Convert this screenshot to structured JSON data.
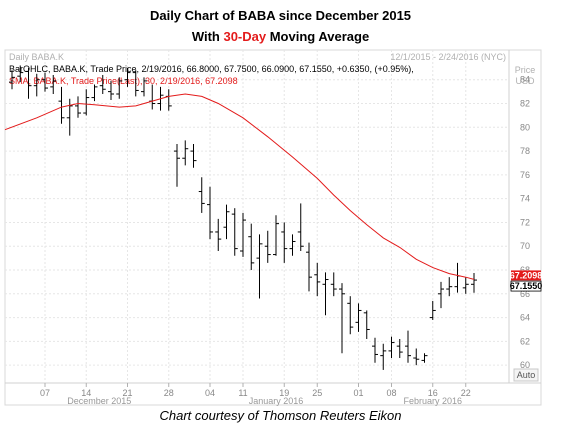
{
  "header": {
    "title_line1": "Daily Chart of BABA since December 2015",
    "title_line2_pre": "With ",
    "title_line2_highlight": "30-Day",
    "title_line2_post": " Moving Average"
  },
  "caption": "Chart courtesy of Thomson Reuters Eikon",
  "chart_data": {
    "type": "line",
    "panel_label": "Daily BABA.K",
    "date_range_label": "12/1/2015 - 2/24/2016 (NYC)",
    "legend": [
      {
        "text": "BarOHLC, BABA.K, Trade Price, 2/19/2016, 66.8000, 67.7500, 66.0900, 67.1550, +0.6350, (+0.95%),",
        "color": "#000000"
      },
      {
        "text": "SMA, BABA.K, Trade Price(Last), 30, 2/19/2016, 67.2098",
        "color": "#e31b1b"
      }
    ],
    "ylabel": "Price",
    "ylabel_unit": "USD",
    "ylim": [
      58.5,
      86.5
    ],
    "yticks": [
      60,
      62,
      64,
      66,
      68,
      70,
      72,
      74,
      76,
      78,
      80,
      82,
      84
    ],
    "y_format": "2 decimals",
    "x_tick_labels": [
      "07",
      "14",
      "21",
      "28",
      "04",
      "11",
      "19",
      "25",
      "01",
      "08",
      "16",
      "22"
    ],
    "month_labels": [
      "December 2015",
      "January 2016",
      "February 2016"
    ],
    "auto_label": "Auto",
    "last_sma_label": "67.2098",
    "last_price_label": "67.1550",
    "series": [
      {
        "name": "BarOHLC",
        "kind": "ohlc",
        "color": "#000000",
        "ohlc": [
          [
            83.8,
            84.8,
            83.2,
            84.2
          ],
          [
            84.3,
            85.2,
            83.8,
            84.6
          ],
          [
            84.7,
            85.0,
            82.4,
            83.5
          ],
          [
            83.5,
            84.5,
            82.6,
            84.0
          ],
          [
            84.0,
            84.6,
            83.0,
            83.3
          ],
          [
            83.4,
            84.4,
            82.8,
            83.9
          ],
          [
            82.2,
            83.4,
            80.3,
            80.8
          ],
          [
            80.8,
            82.4,
            79.3,
            81.8
          ],
          [
            81.8,
            82.6,
            80.8,
            81.2
          ],
          [
            81.2,
            83.2,
            81.0,
            82.5
          ],
          [
            82.5,
            83.6,
            82.2,
            83.4
          ],
          [
            83.5,
            84.4,
            82.8,
            83.2
          ],
          [
            83.0,
            83.9,
            82.3,
            82.8
          ],
          [
            82.8,
            84.2,
            82.4,
            83.9
          ],
          [
            84.0,
            85.0,
            83.4,
            84.6
          ],
          [
            84.6,
            84.8,
            82.6,
            83.1
          ],
          [
            83.0,
            84.2,
            82.6,
            83.9
          ],
          [
            82.2,
            83.6,
            81.5,
            82.0
          ],
          [
            82.0,
            83.4,
            81.4,
            82.7
          ],
          [
            82.6,
            83.2,
            81.4,
            81.8
          ],
          [
            78.0,
            78.6,
            75.0,
            77.4
          ],
          [
            77.4,
            78.9,
            76.8,
            78.2
          ],
          [
            78.0,
            78.6,
            76.6,
            77.2
          ],
          [
            74.6,
            75.8,
            72.8,
            73.6
          ],
          [
            73.5,
            75.0,
            70.6,
            71.2
          ],
          [
            71.2,
            72.3,
            69.6,
            70.6
          ],
          [
            71.6,
            73.5,
            70.6,
            72.9
          ],
          [
            72.7,
            73.2,
            69.2,
            69.8
          ],
          [
            69.6,
            72.8,
            69.1,
            72.2
          ],
          [
            70.8,
            71.9,
            68.0,
            68.6
          ],
          [
            69.0,
            71.0,
            65.6,
            70.2
          ],
          [
            70.0,
            71.3,
            68.6,
            69.3
          ],
          [
            69.3,
            72.6,
            69.2,
            71.9
          ],
          [
            71.2,
            72.0,
            68.6,
            69.8
          ],
          [
            69.8,
            71.0,
            69.2,
            70.4
          ],
          [
            71.2,
            73.6,
            69.6,
            70.0
          ],
          [
            69.5,
            70.3,
            66.2,
            67.4
          ],
          [
            67.6,
            68.6,
            65.8,
            67.0
          ],
          [
            66.8,
            67.8,
            64.2,
            67.2
          ],
          [
            66.8,
            67.8,
            65.8,
            66.4
          ],
          [
            66.4,
            66.9,
            61.0,
            66.0
          ],
          [
            65.2,
            65.8,
            62.6,
            63.2
          ],
          [
            63.6,
            65.2,
            62.8,
            64.6
          ],
          [
            64.4,
            64.6,
            62.2,
            63.0
          ],
          [
            61.6,
            62.3,
            60.2,
            60.9
          ],
          [
            60.8,
            61.8,
            59.6,
            61.2
          ],
          [
            61.2,
            62.4,
            60.6,
            61.9
          ],
          [
            61.6,
            62.2,
            60.6,
            61.1
          ],
          [
            61.6,
            62.9,
            60.2,
            60.8
          ],
          [
            60.6,
            61.4,
            60.0,
            60.5
          ],
          [
            60.4,
            61.0,
            60.2,
            60.8
          ],
          [
            64.0,
            65.4,
            63.8,
            64.6
          ],
          [
            66.0,
            67.0,
            64.8,
            66.4
          ],
          [
            66.4,
            67.4,
            65.8,
            66.6
          ],
          [
            66.6,
            68.6,
            66.1,
            67.5
          ],
          [
            66.5,
            67.4,
            66.0,
            66.8
          ],
          [
            66.8,
            67.75,
            66.09,
            67.155
          ]
        ]
      },
      {
        "name": "SMA",
        "kind": "line",
        "color": "#e31b1b",
        "points": [
          [
            0,
            79.8
          ],
          [
            3,
            80.8
          ],
          [
            6,
            81.7
          ],
          [
            8,
            82.0
          ],
          [
            10,
            81.9
          ],
          [
            13,
            81.7
          ],
          [
            15,
            81.8
          ],
          [
            17,
            82.2
          ],
          [
            19,
            82.6
          ],
          [
            21,
            82.8
          ],
          [
            23,
            82.6
          ],
          [
            25,
            82.0
          ],
          [
            28,
            80.8
          ],
          [
            31,
            79.2
          ],
          [
            34,
            77.5
          ],
          [
            37,
            75.7
          ],
          [
            39,
            74.3
          ],
          [
            41,
            73.0
          ],
          [
            43,
            71.8
          ],
          [
            45,
            70.7
          ],
          [
            47,
            69.9
          ],
          [
            49,
            68.9
          ],
          [
            51,
            68.2
          ],
          [
            53,
            67.7
          ],
          [
            55,
            67.4
          ],
          [
            56,
            67.2098
          ]
        ]
      }
    ],
    "grid": true
  }
}
